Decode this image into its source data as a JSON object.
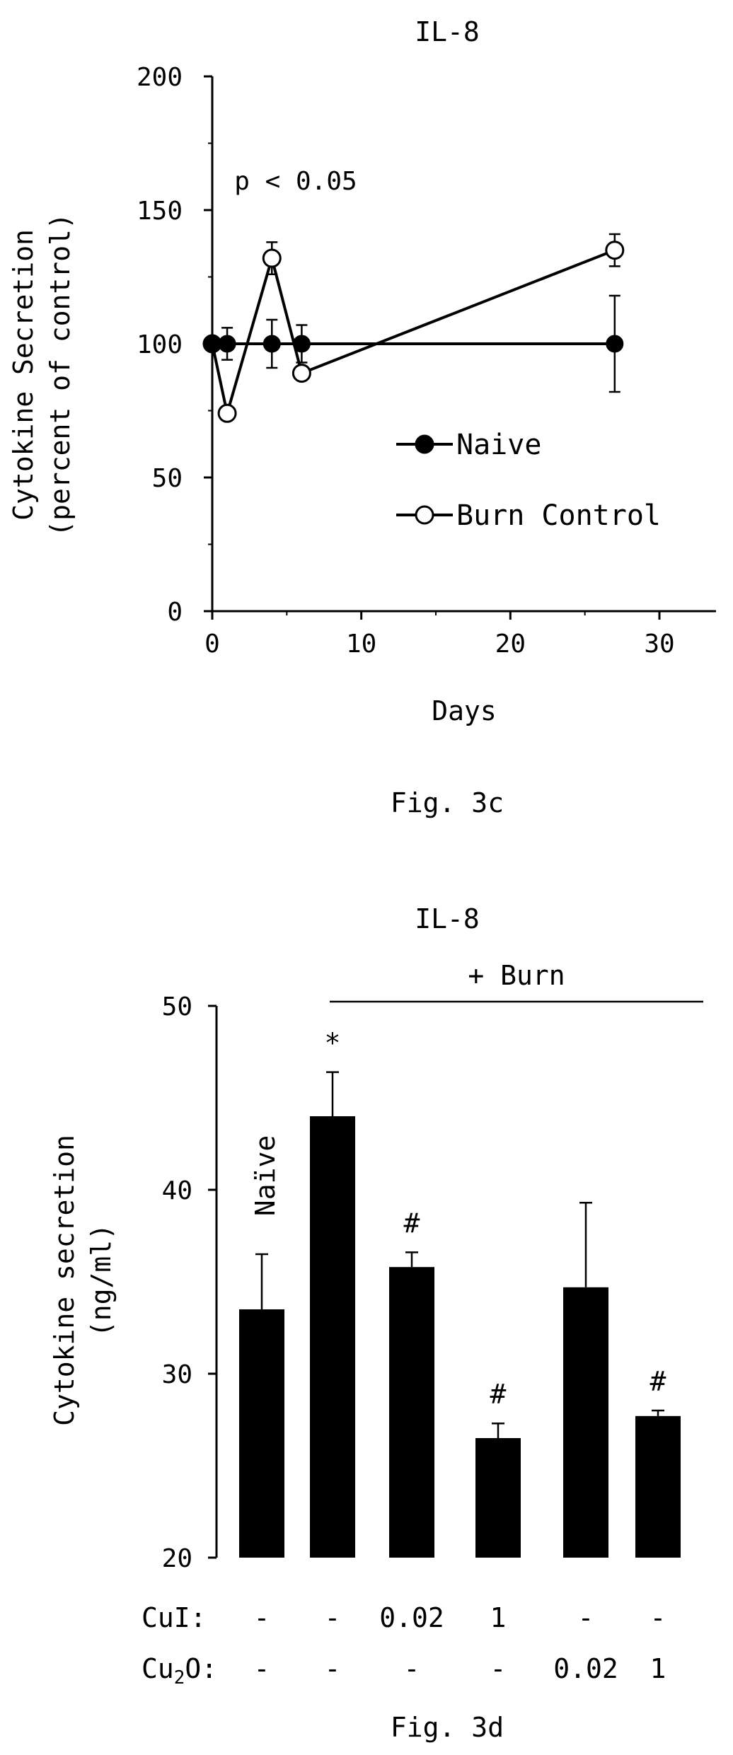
{
  "figure_c": {
    "caption": "Fig. 3c",
    "annotation": "p < 0.05"
  },
  "figure_d": {
    "caption": "Fig. 3d",
    "group_label": "+ Burn",
    "naive_label": "Naïve",
    "row_labels": [
      "CuI:",
      "Cu2O:"
    ],
    "cui_values": [
      "-",
      "-",
      "0.02",
      "1",
      "-",
      "-"
    ],
    "cu2o_values": [
      "-",
      "-",
      "-",
      "-",
      "0.02",
      "1"
    ]
  },
  "chart_data": [
    {
      "type": "line",
      "title": "IL-8",
      "xlabel": "Days",
      "ylabel": "Cytokine Secretion (percent of control)",
      "xlim": [
        0,
        30
      ],
      "ylim": [
        0,
        200
      ],
      "xticks": [
        0,
        10,
        20,
        30
      ],
      "yticks": [
        0,
        50,
        100,
        150,
        200
      ],
      "legend_position": "center-right",
      "series": [
        {
          "name": "Naive",
          "marker": "filled-circle",
          "x": [
            0,
            1,
            4,
            6,
            27
          ],
          "y": [
            100,
            100,
            100,
            100,
            100
          ],
          "error": [
            0,
            6,
            9,
            7,
            18
          ]
        },
        {
          "name": "Burn Control",
          "marker": "open-circle",
          "x": [
            0,
            1,
            4,
            6,
            27
          ],
          "y": [
            100,
            74,
            132,
            89,
            135
          ],
          "error": [
            0,
            0,
            6,
            0,
            6
          ]
        }
      ]
    },
    {
      "type": "bar",
      "title": "IL-8",
      "ylabel": "Cytokine secretion (ng/ml)",
      "ylim": [
        20,
        50
      ],
      "yticks": [
        20,
        30,
        40,
        50
      ],
      "values": [
        33.5,
        44.0,
        35.8,
        26.5,
        34.7,
        27.7
      ],
      "error": [
        3.0,
        2.4,
        0.8,
        0.8,
        4.6,
        0.3
      ],
      "markers": [
        "",
        "*",
        "#",
        "#",
        "",
        "#"
      ]
    }
  ]
}
